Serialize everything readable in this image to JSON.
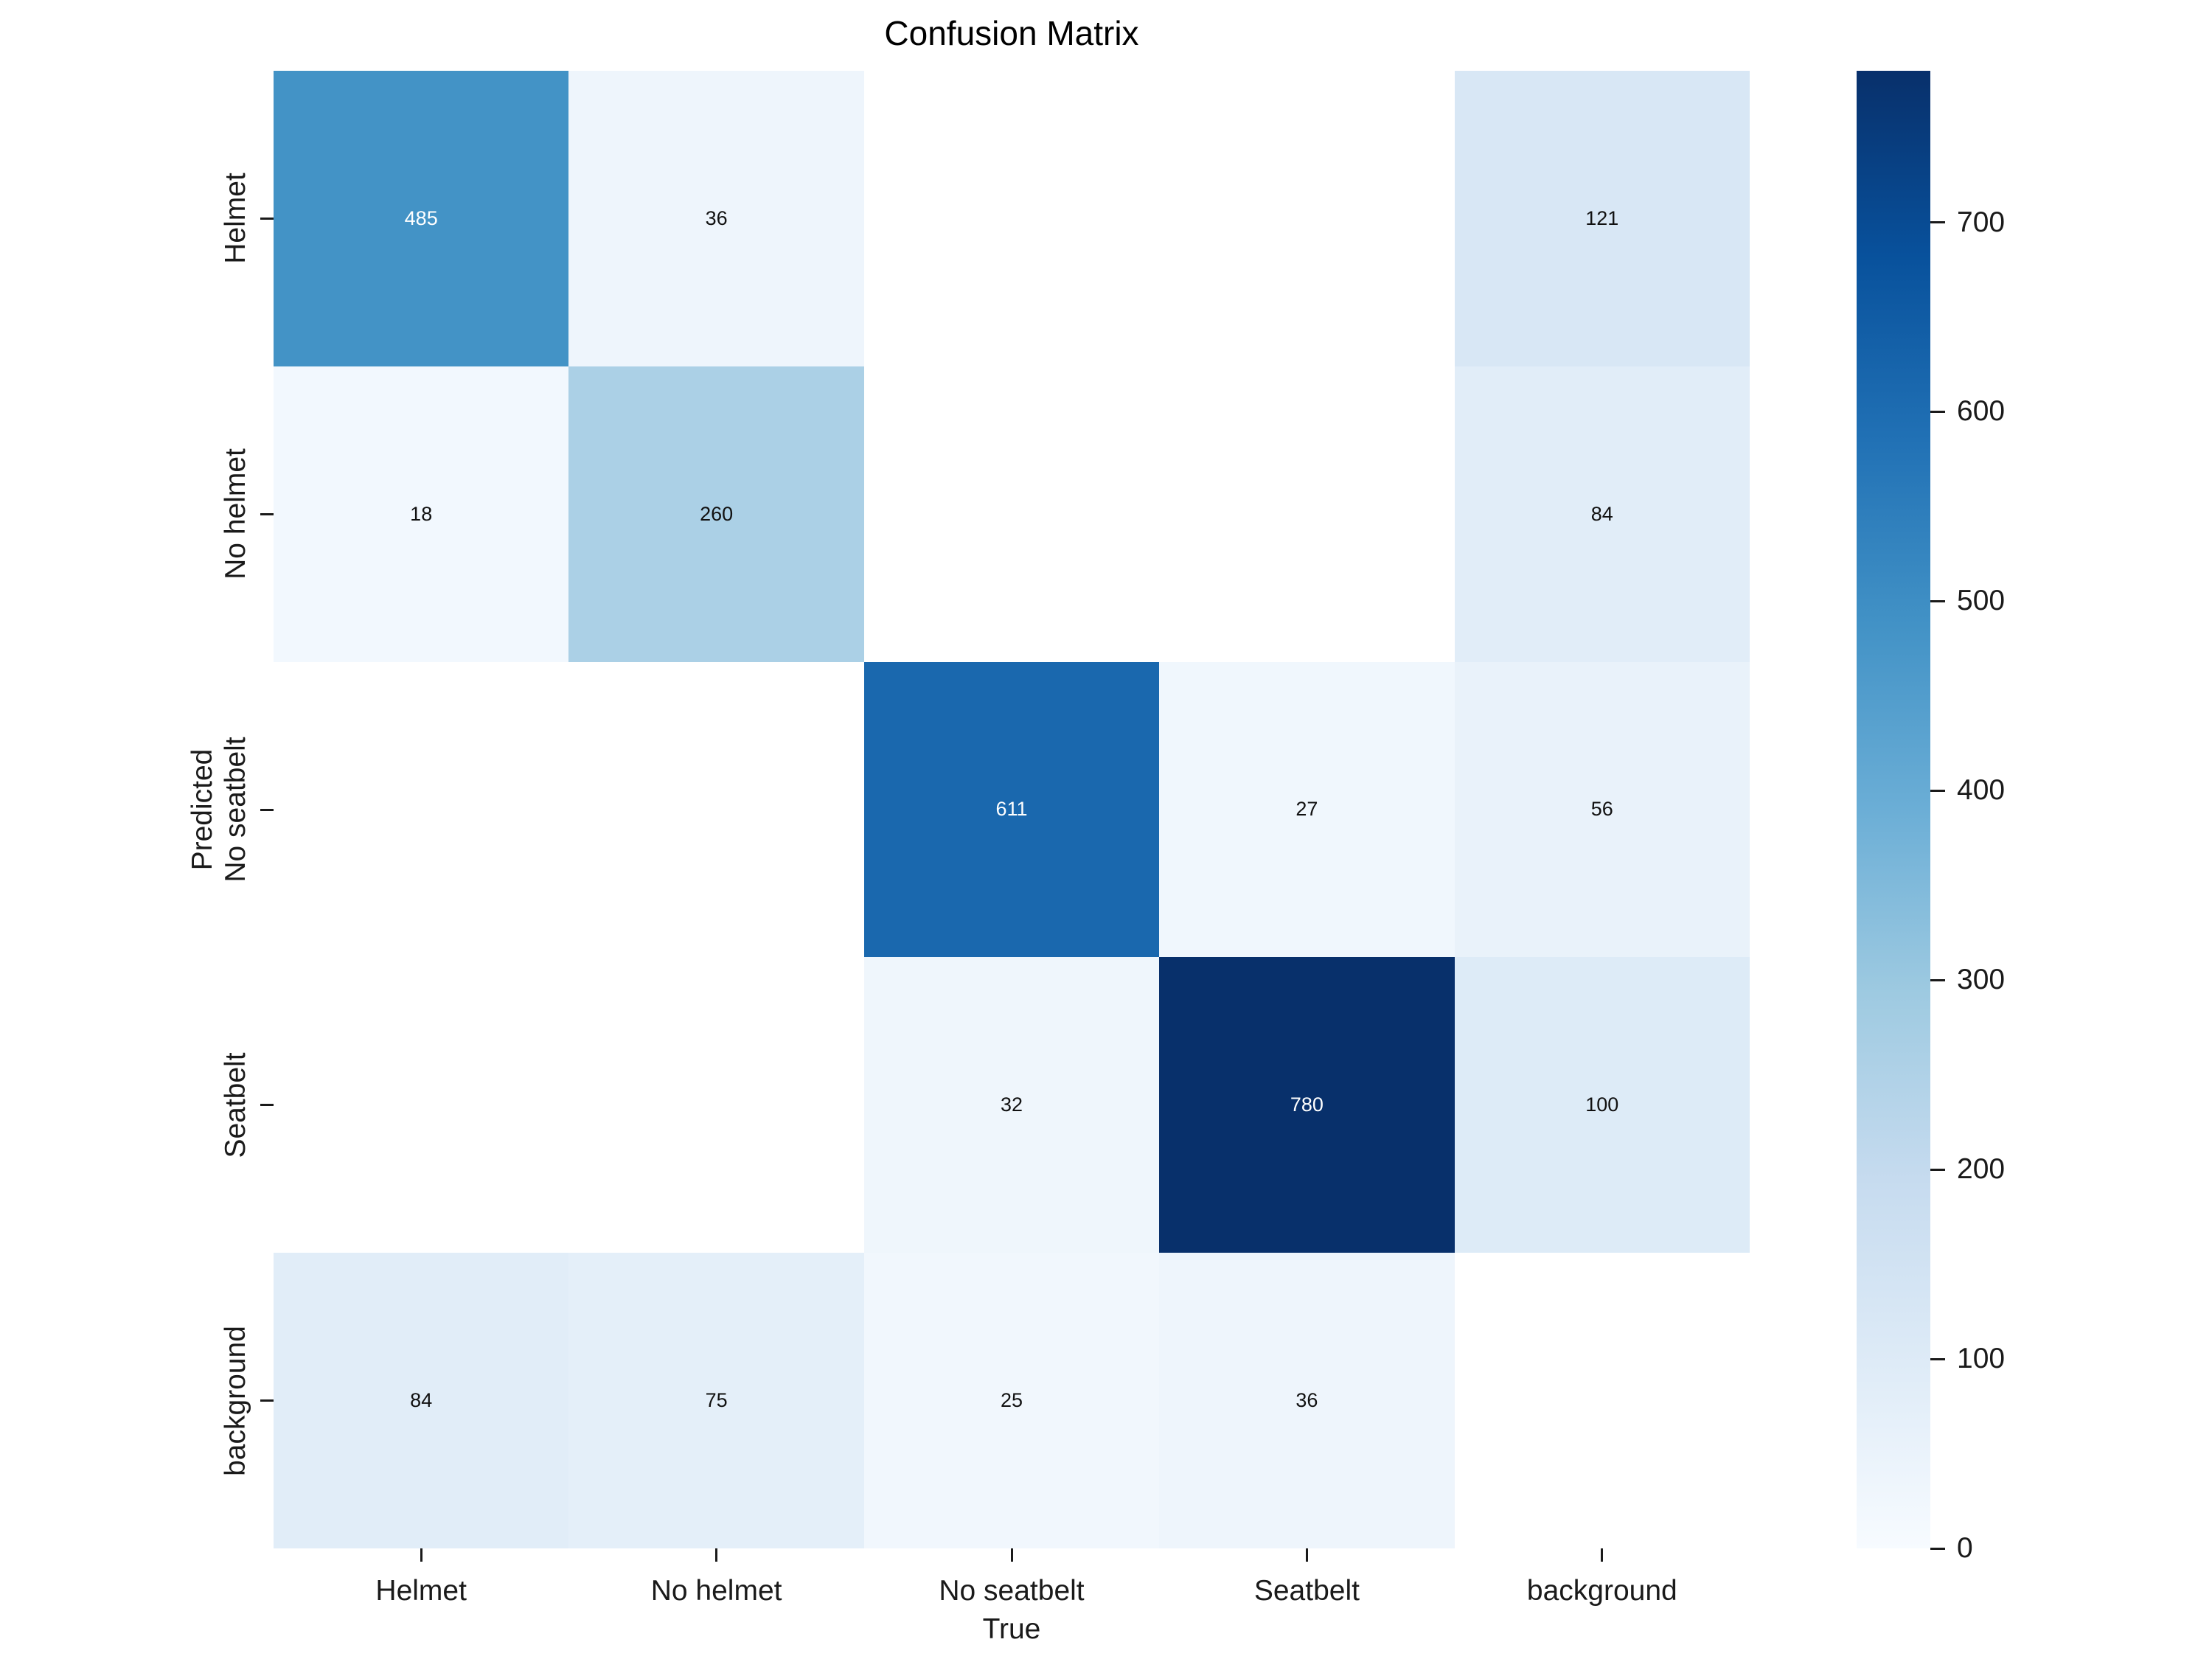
{
  "title": "Confusion Matrix",
  "axes": {
    "x_label": "True",
    "y_label": "Predicted",
    "x_tick_labels": [
      "Helmet",
      "No helmet",
      "No seatbelt",
      "Seatbelt",
      "background"
    ],
    "y_tick_labels": [
      "Helmet",
      "No helmet",
      "No seatbelt",
      "Seatbelt",
      "background"
    ]
  },
  "chart_data": {
    "type": "heatmap",
    "title": "Confusion Matrix",
    "xlabel": "True",
    "ylabel": "Predicted",
    "x_categories": [
      "Helmet",
      "No helmet",
      "No seatbelt",
      "Seatbelt",
      "background"
    ],
    "y_categories": [
      "Helmet",
      "No helmet",
      "No seatbelt",
      "Seatbelt",
      "background"
    ],
    "matrix": [
      [
        485,
        36,
        null,
        null,
        121
      ],
      [
        18,
        260,
        null,
        null,
        84
      ],
      [
        null,
        null,
        611,
        27,
        56
      ],
      [
        null,
        null,
        32,
        780,
        100
      ],
      [
        84,
        75,
        25,
        36,
        null
      ]
    ],
    "vmin": 0,
    "vmax": 780,
    "colorbar_ticks": [
      0,
      100,
      200,
      300,
      400,
      500,
      600,
      700
    ],
    "colormap": {
      "name": "Blues",
      "anchors": [
        {
          "pos": 0.0,
          "color": "#f7fbff"
        },
        {
          "pos": 0.125,
          "color": "#deebf7"
        },
        {
          "pos": 0.25,
          "color": "#c6dbef"
        },
        {
          "pos": 0.375,
          "color": "#9ecae1"
        },
        {
          "pos": 0.5,
          "color": "#6baed6"
        },
        {
          "pos": 0.625,
          "color": "#4292c6"
        },
        {
          "pos": 0.75,
          "color": "#2171b5"
        },
        {
          "pos": 0.875,
          "color": "#08519c"
        },
        {
          "pos": 1.0,
          "color": "#08306b"
        }
      ]
    },
    "empty_cell_color": "#ffffff",
    "background_color": "#ffffff",
    "annot_color_dark": "#111111",
    "annot_color_light": "#ffffff",
    "annot_light_threshold": 0.6
  }
}
